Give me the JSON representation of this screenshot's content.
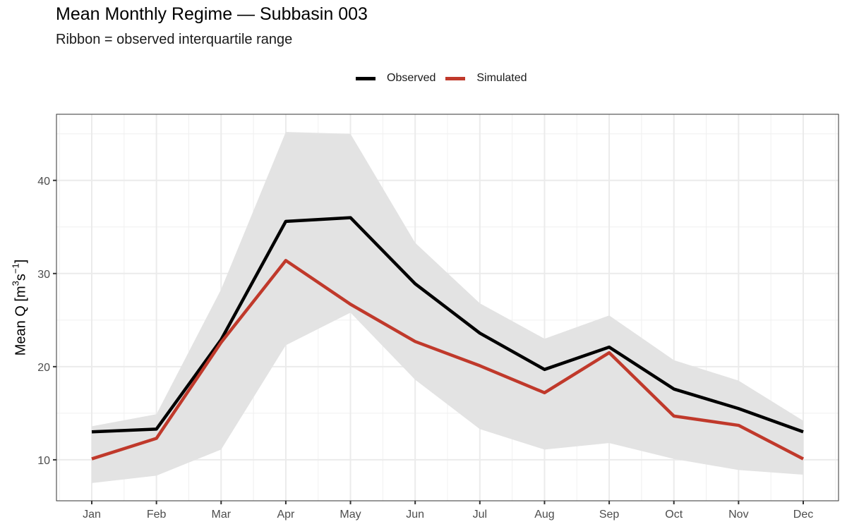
{
  "chart_data": {
    "type": "line",
    "title": "Mean Monthly Regime — Subbasin 003",
    "subtitle": "Ribbon = observed interquartile range",
    "xlabel": "",
    "ylabel": {
      "base": "Mean Q [m",
      "sup1": "3",
      "mid": "s",
      "sup2": "−1",
      "end": "]"
    },
    "categories": [
      "Jan",
      "Feb",
      "Mar",
      "Apr",
      "May",
      "Jun",
      "Jul",
      "Aug",
      "Sep",
      "Oct",
      "Nov",
      "Dec"
    ],
    "ylim": [
      5.6,
      47.1
    ],
    "yticks": [
      10,
      20,
      30,
      40
    ],
    "grid": true,
    "legend_position": "top",
    "series": [
      {
        "name": "Observed",
        "color": "#000000",
        "values": [
          13.0,
          13.3,
          22.9,
          35.6,
          36.0,
          28.9,
          23.6,
          19.7,
          22.1,
          17.6,
          15.5,
          13.0
        ]
      },
      {
        "name": "Simulated",
        "color": "#c0392b",
        "values": [
          10.1,
          12.3,
          22.6,
          31.4,
          26.7,
          22.7,
          20.1,
          17.2,
          21.5,
          14.7,
          13.7,
          10.1
        ]
      }
    ],
    "ribbon": {
      "name": "Observed interquartile range",
      "color": "#e3e3e3",
      "lower": [
        7.5,
        8.3,
        11.1,
        22.3,
        25.8,
        18.6,
        13.3,
        11.1,
        11.8,
        10.1,
        8.9,
        8.4
      ],
      "upper": [
        13.6,
        14.9,
        28.3,
        45.2,
        45.0,
        33.3,
        26.8,
        23.0,
        25.5,
        20.7,
        18.5,
        14.2
      ]
    }
  }
}
